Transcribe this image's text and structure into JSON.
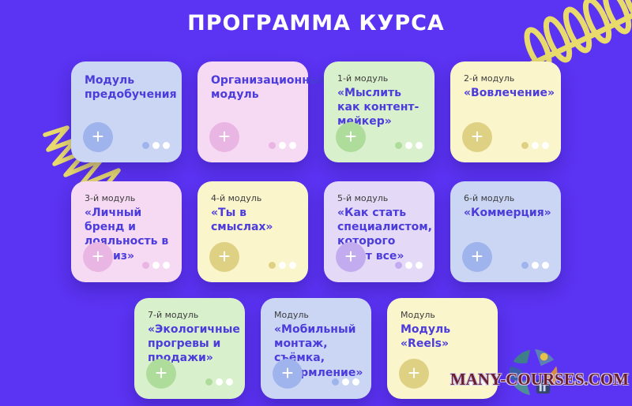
{
  "page": {
    "title": "ПРОГРАММА КУРСА"
  },
  "icons": {
    "plus": "+"
  },
  "watermark": {
    "text": "MANY-COURSES.COM"
  },
  "cards": [
    {
      "label": "",
      "title": "Модуль предобучения",
      "theme": "blue"
    },
    {
      "label": "",
      "title": "Организационный модуль",
      "theme": "pink"
    },
    {
      "label": "1-й модуль",
      "title": "«Мыслить как контент-мейкер»",
      "theme": "green"
    },
    {
      "label": "2-й модуль",
      "title": "«Вовлечение»",
      "theme": "yellow"
    },
    {
      "label": "3-й модуль",
      "title": "«Личный бренд и лояльность в сториз»",
      "theme": "pink"
    },
    {
      "label": "4-й модуль",
      "title": "«Ты в смыслах»",
      "theme": "yellow"
    },
    {
      "label": "5-й модуль",
      "title": "«Как стать специалистом, которого хотят все»",
      "theme": "lavender"
    },
    {
      "label": "6-й модуль",
      "title": "«Коммерция»",
      "theme": "blue"
    },
    {
      "label": "7-й модуль",
      "title": "«Экологичные прогревы и продажи»",
      "theme": "green"
    },
    {
      "label": "Модуль",
      "title": "«Мобильный монтаж, съёмка, оформление»",
      "theme": "blue"
    },
    {
      "label": "Модуль",
      "title": "Модуль «Reels»",
      "theme": "yellow"
    }
  ],
  "colors": {
    "background": "#5B33F2",
    "title_text": "#FFFFFF",
    "card_title": "#4C3CDB",
    "card_label": "#3C3C3C",
    "squiggle": "#F0E464",
    "watermark_text": "#6B1E2C",
    "watermark_outline": "#CFC6EE",
    "themes": {
      "blue": {
        "bg": "#CBD6F4",
        "accent": "#9FB3EC"
      },
      "pink": {
        "bg": "#F6D9F2",
        "accent": "#E9B5E3"
      },
      "green": {
        "bg": "#D9F0CC",
        "accent": "#AEDC9B"
      },
      "yellow": {
        "bg": "#FAF5CB",
        "accent": "#DFD184"
      },
      "lavender": {
        "bg": "#E4DAF7",
        "accent": "#C3ABEF"
      }
    }
  }
}
